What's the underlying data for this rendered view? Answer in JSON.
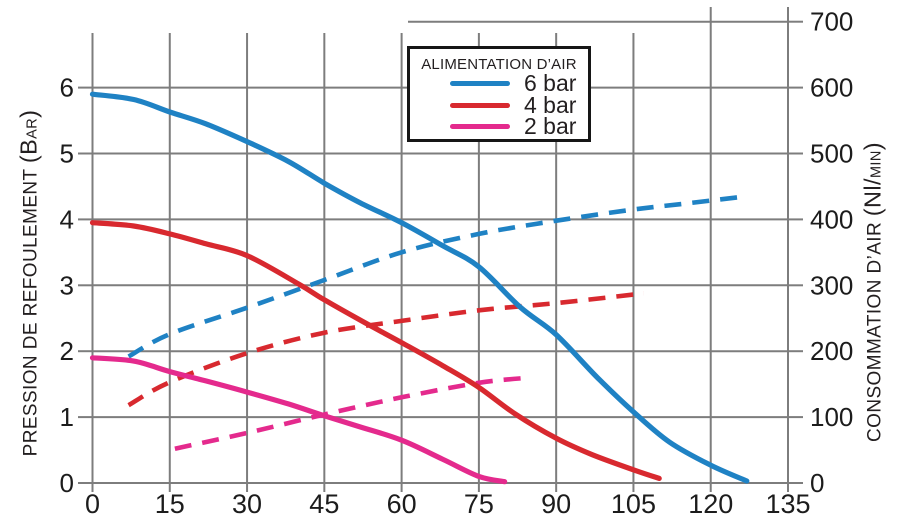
{
  "legend": {
    "title": "ALIMENTATION D’AIR",
    "items": [
      {
        "label": "6 bar",
        "color": "#1f82c4"
      },
      {
        "label": "4 bar",
        "color": "#d8292f"
      },
      {
        "label": "2 bar",
        "color": "#e42a8d"
      }
    ]
  },
  "left_axis": {
    "label": "PRESSION DE REFOULEMENT (BAR)",
    "title_parts": [
      {
        "text": "PRESSION DE REFOULEMENT ",
        "size": "normal"
      },
      {
        "text": "(B",
        "size": "large"
      },
      {
        "text": "AR",
        "size": "small"
      },
      {
        "text": ")",
        "size": "large"
      }
    ]
  },
  "right_axis": {
    "label": "CONSOMMATION D’AIR (Nl/MIN)",
    "title_parts": [
      {
        "text": "CONSOMMATION D’AIR ",
        "size": "normal"
      },
      {
        "text": "(Nl/",
        "size": "large"
      },
      {
        "text": "MIN",
        "size": "small"
      },
      {
        "text": ")",
        "size": "large"
      }
    ]
  },
  "chart_data": {
    "type": "line",
    "title": "",
    "x_axis": {
      "min": 0,
      "max": 135,
      "ticks": [
        0,
        15,
        30,
        45,
        60,
        75,
        90,
        105,
        120,
        135
      ]
    },
    "left_y_axis": {
      "label": "PRESSION DE REFOULEMENT (BAR)",
      "unit": "bar",
      "min": 0,
      "max": 6,
      "ticks": [
        0,
        1,
        2,
        3,
        4,
        5,
        6
      ]
    },
    "right_y_axis": {
      "label": "CONSOMMATION D’AIR (Nl/MIN)",
      "unit": "Nl/min",
      "min": 0,
      "max": 700,
      "ticks": [
        0,
        100,
        200,
        300,
        400,
        500,
        600,
        700
      ]
    },
    "grid": true,
    "legend_position": "top-center",
    "series": [
      {
        "name": "6 bar — consommation d'air",
        "axis": "right",
        "style": "dashed",
        "color": "#1f82c4",
        "points": [
          [
            7,
            192
          ],
          [
            15,
            226
          ],
          [
            30,
            266
          ],
          [
            45,
            308
          ],
          [
            60,
            350
          ],
          [
            75,
            378
          ],
          [
            90,
            398
          ],
          [
            105,
            415
          ],
          [
            115,
            424
          ],
          [
            127,
            435
          ]
        ]
      },
      {
        "name": "4 bar — consommation d'air",
        "axis": "right",
        "style": "dashed",
        "color": "#d8292f",
        "points": [
          [
            7,
            118
          ],
          [
            15,
            153
          ],
          [
            30,
            197
          ],
          [
            45,
            228
          ],
          [
            60,
            246
          ],
          [
            75,
            262
          ],
          [
            90,
            273
          ],
          [
            105,
            286
          ],
          [
            107,
            288
          ]
        ]
      },
      {
        "name": "2 bar — consommation d'air",
        "axis": "right",
        "style": "dashed",
        "color": "#e42a8d",
        "points": [
          [
            16,
            52
          ],
          [
            30,
            76
          ],
          [
            45,
            104
          ],
          [
            60,
            130
          ],
          [
            75,
            152
          ],
          [
            85,
            160
          ]
        ]
      },
      {
        "name": "6 bar — pression",
        "axis": "left",
        "style": "solid",
        "color": "#1f82c4",
        "points": [
          [
            0,
            5.9
          ],
          [
            8,
            5.82
          ],
          [
            15,
            5.63
          ],
          [
            22,
            5.45
          ],
          [
            30,
            5.18
          ],
          [
            38,
            4.88
          ],
          [
            45,
            4.55
          ],
          [
            52,
            4.25
          ],
          [
            60,
            3.95
          ],
          [
            68,
            3.6
          ],
          [
            75,
            3.28
          ],
          [
            83,
            2.67
          ],
          [
            90,
            2.25
          ],
          [
            98,
            1.6
          ],
          [
            105,
            1.08
          ],
          [
            112,
            0.62
          ],
          [
            120,
            0.27
          ],
          [
            127,
            0.03
          ]
        ]
      },
      {
        "name": "4 bar — pression",
        "axis": "left",
        "style": "solid",
        "color": "#d8292f",
        "points": [
          [
            0,
            3.95
          ],
          [
            8,
            3.9
          ],
          [
            15,
            3.78
          ],
          [
            22,
            3.63
          ],
          [
            30,
            3.45
          ],
          [
            40,
            3.02
          ],
          [
            45,
            2.78
          ],
          [
            52,
            2.47
          ],
          [
            60,
            2.13
          ],
          [
            68,
            1.78
          ],
          [
            75,
            1.45
          ],
          [
            82,
            1.05
          ],
          [
            90,
            0.68
          ],
          [
            97,
            0.43
          ],
          [
            105,
            0.2
          ],
          [
            110,
            0.07
          ]
        ]
      },
      {
        "name": "2 bar — pression",
        "axis": "left",
        "style": "solid",
        "color": "#e42a8d",
        "points": [
          [
            0,
            1.9
          ],
          [
            8,
            1.85
          ],
          [
            15,
            1.69
          ],
          [
            22,
            1.55
          ],
          [
            30,
            1.38
          ],
          [
            38,
            1.2
          ],
          [
            45,
            1.02
          ],
          [
            52,
            0.85
          ],
          [
            60,
            0.65
          ],
          [
            68,
            0.36
          ],
          [
            75,
            0.1
          ],
          [
            80,
            0.02
          ]
        ]
      }
    ]
  }
}
